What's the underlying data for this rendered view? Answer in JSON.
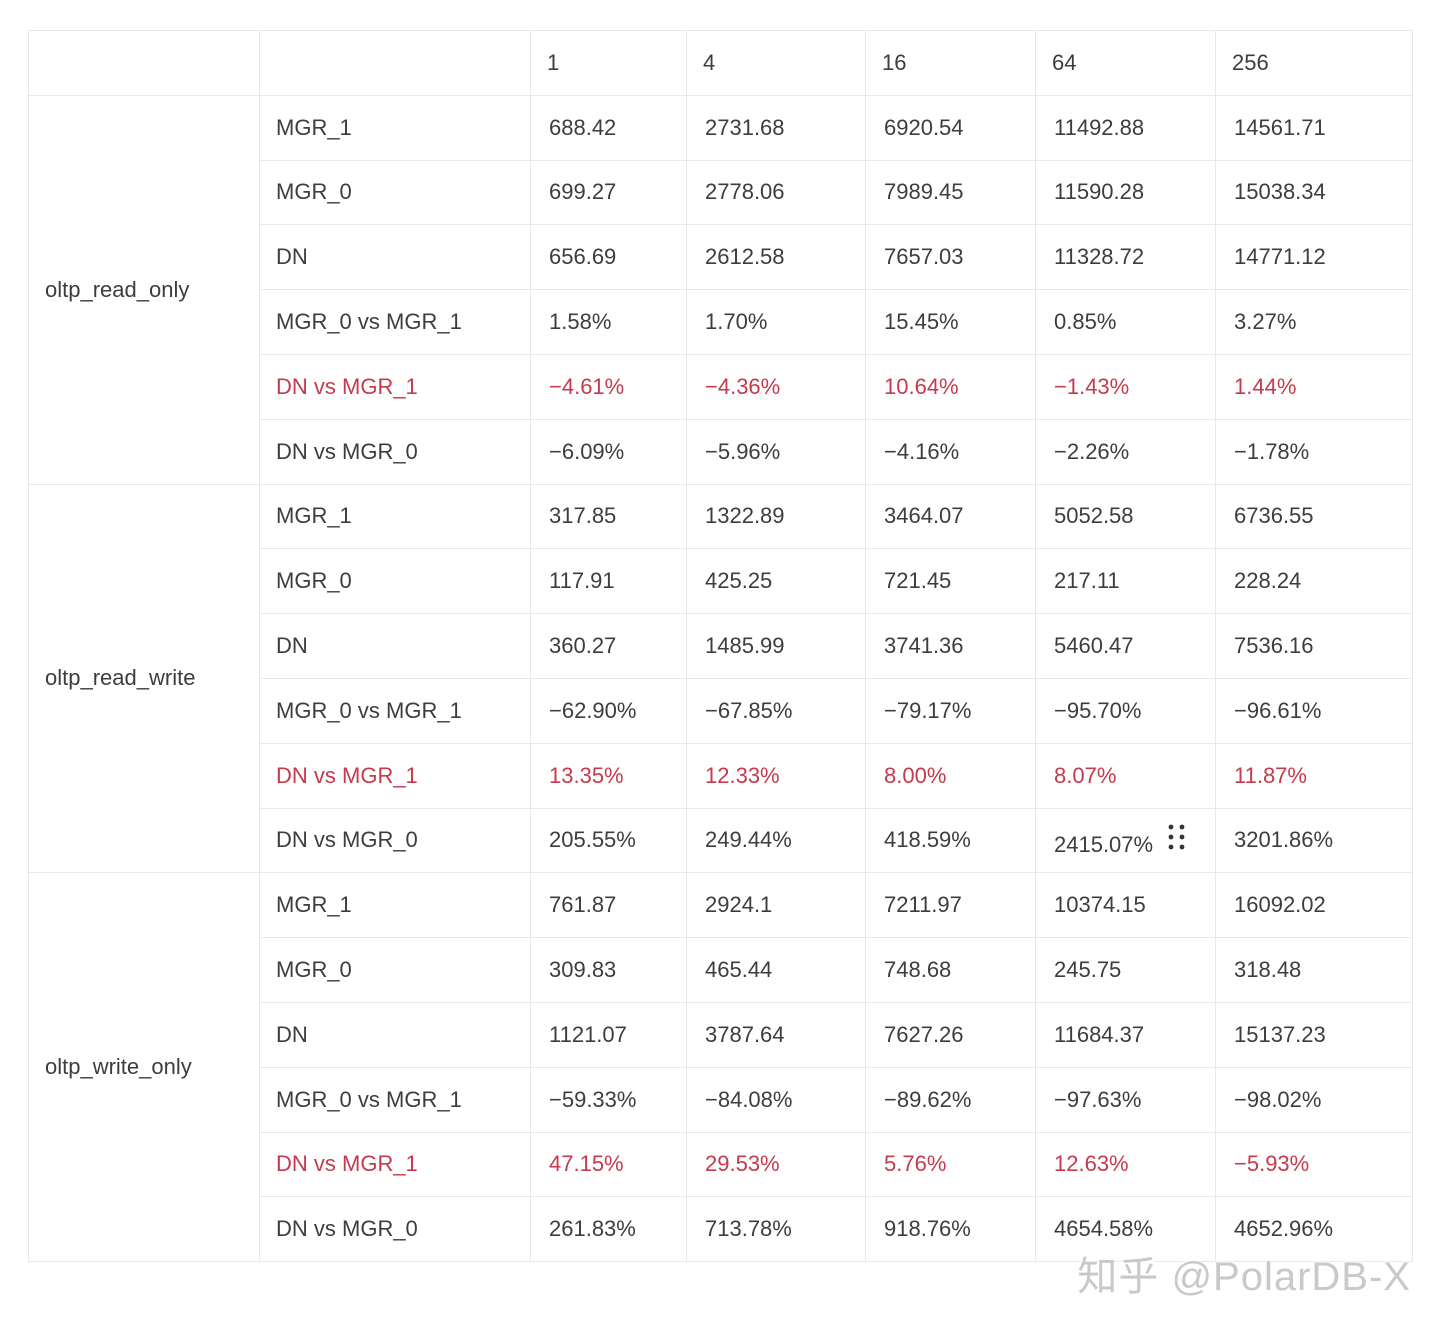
{
  "chart_data": {
    "type": "table",
    "title": "",
    "thread_columns": [
      "1",
      "4",
      "16",
      "64",
      "256"
    ],
    "groups": [
      {
        "name": "oltp_read_only",
        "rows": [
          {
            "label": "MGR_1",
            "red": false,
            "values": [
              "688.42",
              "2731.68",
              "6920.54",
              "11492.88",
              "14561.71"
            ]
          },
          {
            "label": "MGR_0",
            "red": false,
            "values": [
              "699.27",
              "2778.06",
              "7989.45",
              "11590.28",
              "15038.34"
            ]
          },
          {
            "label": "DN",
            "red": false,
            "values": [
              "656.69",
              "2612.58",
              "7657.03",
              "11328.72",
              "14771.12"
            ]
          },
          {
            "label": "MGR_0 vs MGR_1",
            "red": false,
            "values": [
              "1.58%",
              "1.70%",
              "15.45%",
              "0.85%",
              "3.27%"
            ]
          },
          {
            "label": "DN vs MGR_1",
            "red": true,
            "values": [
              "−4.61%",
              "−4.36%",
              "10.64%",
              "−1.43%",
              "1.44%"
            ]
          },
          {
            "label": "DN vs MGR_0",
            "red": false,
            "values": [
              "−6.09%",
              "−5.96%",
              "−4.16%",
              "−2.26%",
              "−1.78%"
            ]
          }
        ]
      },
      {
        "name": "oltp_read_write",
        "rows": [
          {
            "label": "MGR_1",
            "red": false,
            "values": [
              "317.85",
              "1322.89",
              "3464.07",
              "5052.58",
              "6736.55"
            ]
          },
          {
            "label": "MGR_0",
            "red": false,
            "values": [
              "117.91",
              "425.25",
              "721.45",
              "217.11",
              "228.24"
            ]
          },
          {
            "label": "DN",
            "red": false,
            "values": [
              "360.27",
              "1485.99",
              "3741.36",
              "5460.47",
              "7536.16"
            ]
          },
          {
            "label": "MGR_0 vs MGR_1",
            "red": false,
            "values": [
              "−62.90%",
              "−67.85%",
              "−79.17%",
              "−95.70%",
              "−96.61%"
            ]
          },
          {
            "label": "DN vs MGR_1",
            "red": true,
            "values": [
              "13.35%",
              "12.33%",
              "8.00%",
              "8.07%",
              "11.87%"
            ]
          },
          {
            "label": "DN vs MGR_0",
            "red": false,
            "values": [
              "205.55%",
              "249.44%",
              "418.59%",
              "2415.07%",
              "3201.86%"
            ],
            "drag_handle_col": 3
          }
        ]
      },
      {
        "name": "oltp_write_only",
        "rows": [
          {
            "label": "MGR_1",
            "red": false,
            "values": [
              "761.87",
              "2924.1",
              "7211.97",
              "10374.15",
              "16092.02"
            ]
          },
          {
            "label": "MGR_0",
            "red": false,
            "values": [
              "309.83",
              "465.44",
              "748.68",
              "245.75",
              "318.48"
            ]
          },
          {
            "label": "DN",
            "red": false,
            "values": [
              "1121.07",
              "3787.64",
              "7627.26",
              "11684.37",
              "15137.23"
            ]
          },
          {
            "label": "MGR_0 vs MGR_1",
            "red": false,
            "values": [
              "−59.33%",
              "−84.08%",
              "−89.62%",
              "−97.63%",
              "−98.02%"
            ]
          },
          {
            "label": "DN vs MGR_1",
            "red": true,
            "values": [
              "47.15%",
              "29.53%",
              "5.76%",
              "12.63%",
              "−5.93%"
            ]
          },
          {
            "label": "DN vs MGR_0",
            "red": false,
            "values": [
              "261.83%",
              "713.78%",
              "918.76%",
              "4654.58%",
              "4652.96%"
            ]
          }
        ]
      }
    ],
    "layout": {
      "grid": true,
      "highlight_row_label": "DN vs MGR_1"
    }
  },
  "watermark": {
    "text": "知乎 @PolarDB-X"
  },
  "icons": {
    "drag_handle": "drag-handle-icon"
  },
  "colors": {
    "text": "#3d3d3d",
    "accent_red": "#c53a4c",
    "border": "#e9e9e9",
    "watermark_gray": "#c9c9c9",
    "background": "#ffffff"
  }
}
